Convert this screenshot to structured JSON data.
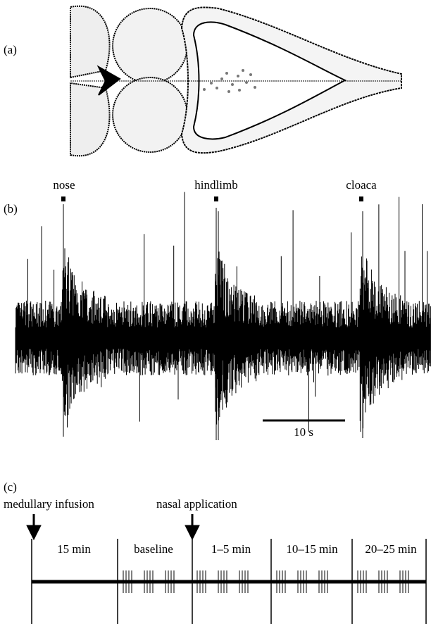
{
  "panel_a": {
    "label": "(a)"
  },
  "panel_b": {
    "label": "(b)",
    "stimuli": [
      "nose",
      "hindlimb",
      "cloaca"
    ],
    "scale_bar": "10 s"
  },
  "panel_c": {
    "label": "(c)",
    "arrows": [
      "medullary infusion",
      "nasal application"
    ],
    "periods": [
      "15 min",
      "baseline",
      "1–5 min",
      "10–15 min",
      "20–25 min"
    ]
  }
}
